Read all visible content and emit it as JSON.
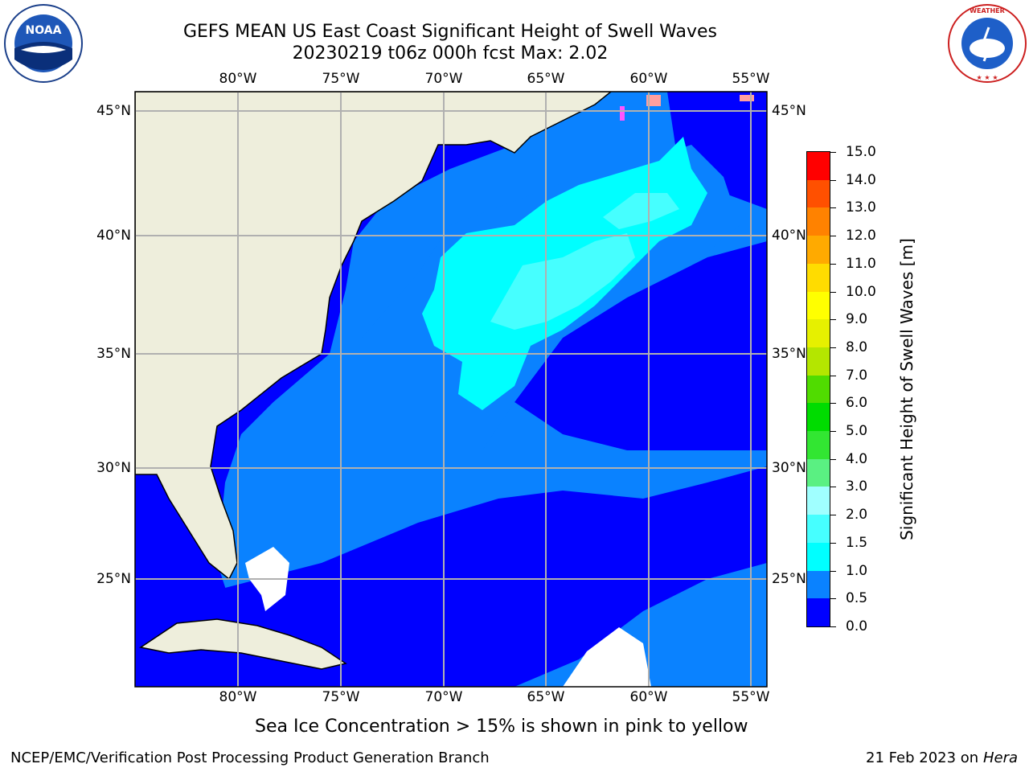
{
  "header": {
    "title_line1": "GEFS MEAN US East Coast Significant Height of Swell Waves",
    "title_line2": "20230219 t06z 000h fcst   Max: 2.02"
  },
  "logos": {
    "left": "noaa-logo",
    "right_text": "NATIONAL WEATHER SERVICE"
  },
  "map": {
    "lon_labels": [
      "80°W",
      "75°W",
      "70°W",
      "65°W",
      "60°W",
      "55°W"
    ],
    "lat_labels": [
      "45°N",
      "40°N",
      "35°N",
      "30°N",
      "25°N"
    ],
    "colors": {
      "land": "#eeeedc",
      "no_data": "#ffffff",
      "swell_0_0_5": "#0000ff",
      "swell_0_5_1_0": "#0a82ff",
      "swell_1_0_1_5": "#00ffff",
      "swell_1_5_2_0": "#46ffff",
      "swell_2_0_3_0": "#a0ffff",
      "grid": "#b0b0b0",
      "ice": "#ff55ff"
    }
  },
  "colorbar": {
    "title": "Significant Height of Swell Waves [m]",
    "labels": [
      "0.0",
      "0.5",
      "1.0",
      "1.5",
      "2.0",
      "3.0",
      "4.0",
      "5.0",
      "6.0",
      "7.0",
      "8.0",
      "9.0",
      "10.0",
      "11.0",
      "12.0",
      "13.0",
      "14.0",
      "15.0"
    ],
    "colors": [
      "#0000ff",
      "#0a82ff",
      "#00ffff",
      "#46ffff",
      "#a0ffff",
      "#5af082",
      "#32e632",
      "#00dc00",
      "#50dc00",
      "#b4e600",
      "#e6f000",
      "#ffff00",
      "#ffdc00",
      "#ffaa00",
      "#ff8200",
      "#ff5000",
      "#ff0000"
    ]
  },
  "notes": {
    "ice": "Sea Ice Concentration > 15% is shown in pink to yellow"
  },
  "footer": {
    "left": "NCEP/EMC/Verification Post Processing Product Generation Branch",
    "right_date": "21 Feb 2023 on",
    "right_host": "Hera"
  }
}
